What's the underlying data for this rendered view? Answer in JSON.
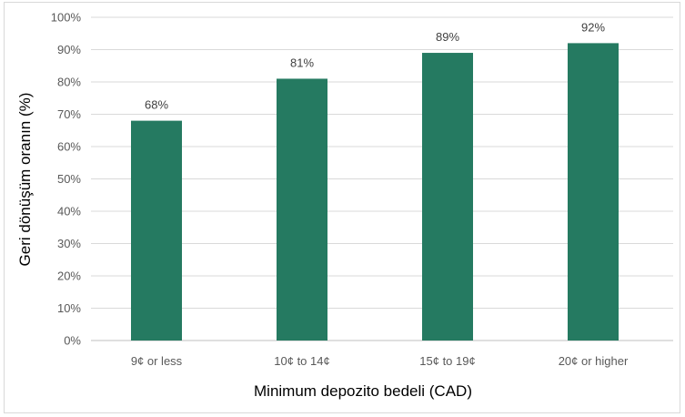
{
  "chart_data": {
    "type": "bar",
    "categories": [
      "9¢ or less",
      "10¢ to 14¢",
      "15¢ to 19¢",
      "20¢ or higher"
    ],
    "values": [
      68,
      81,
      89,
      92
    ],
    "data_labels": [
      "68%",
      "81%",
      "89%",
      "92%"
    ],
    "title": "",
    "xlabel": "Minimum depozito bedeli (CAD)",
    "ylabel": "Geri dönüşüm oranın (%)",
    "ylim": [
      0,
      100
    ],
    "yticks": [
      0,
      10,
      20,
      30,
      40,
      50,
      60,
      70,
      80,
      90,
      100
    ],
    "ytick_labels": [
      "0%",
      "10%",
      "20%",
      "30%",
      "40%",
      "50%",
      "60%",
      "70%",
      "80%",
      "90%",
      "100%"
    ],
    "bar_color": "#257a61",
    "grid": true,
    "legend": "none"
  }
}
